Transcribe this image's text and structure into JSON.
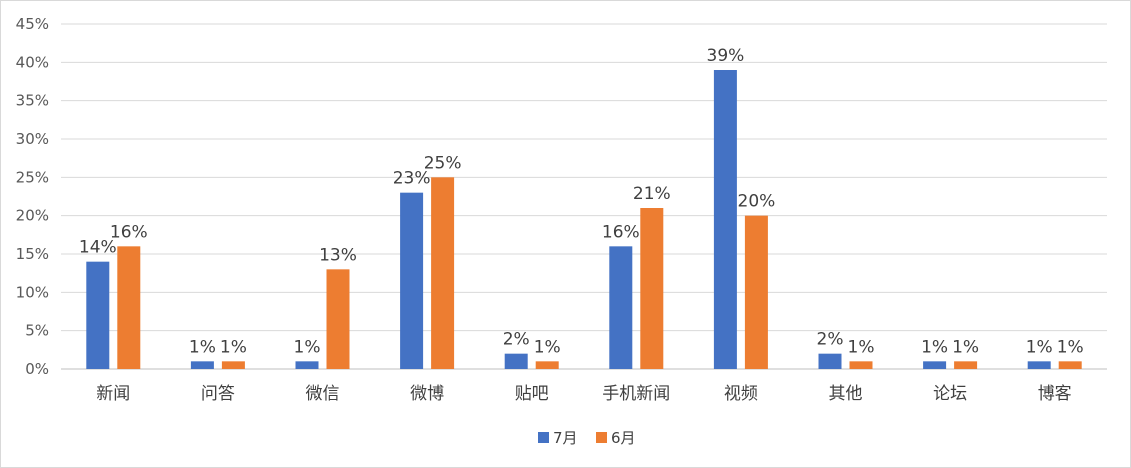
{
  "chart_data": {
    "type": "bar",
    "categories": [
      "新闻",
      "问答",
      "微信",
      "微博",
      "贴吧",
      "手机新闻",
      "视频",
      "其他",
      "论坛",
      "博客"
    ],
    "series": [
      {
        "name": "7月",
        "color": "#4472C4",
        "values": [
          14,
          1,
          1,
          23,
          2,
          16,
          39,
          2,
          1,
          1
        ],
        "labels": [
          "14%",
          "1%",
          "1%",
          "23%",
          "2%",
          "16%",
          "39%",
          "2%",
          "1%",
          "1%"
        ]
      },
      {
        "name": "6月",
        "color": "#ED7D31",
        "values": [
          16,
          1,
          13,
          25,
          1,
          21,
          20,
          1,
          1,
          1
        ],
        "labels": [
          "16%",
          "1%",
          "13%",
          "25%",
          "1%",
          "21%",
          "20%",
          "1%",
          "1%",
          "1%"
        ]
      }
    ],
    "yticks": [
      "0%",
      "5%",
      "10%",
      "15%",
      "20%",
      "25%",
      "30%",
      "35%",
      "40%",
      "45%"
    ],
    "ylim": [
      0,
      45
    ],
    "ytick_step": 5,
    "grid": true,
    "legend": "bottom-center"
  }
}
